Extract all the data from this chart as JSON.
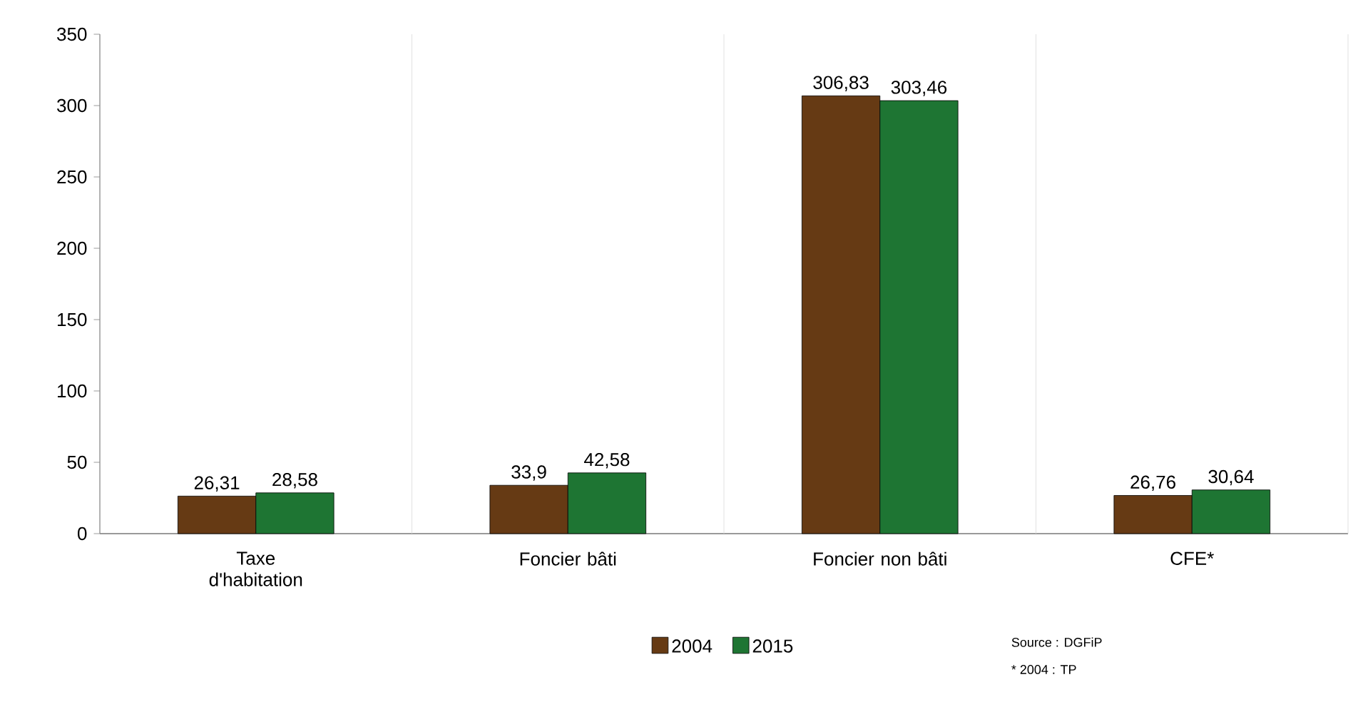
{
  "chart_data": {
    "type": "bar",
    "categories": [
      "Taxe d'habitation",
      "Foncier bâti",
      "Foncier non bâti",
      "CFE*"
    ],
    "series": [
      {
        "name": "2004",
        "color": "#663a14",
        "values": [
          26.31,
          33.9,
          306.83,
          26.76
        ],
        "value_labels": [
          "26,31",
          "33,9",
          "306,83",
          "26,76"
        ]
      },
      {
        "name": "2015",
        "color": "#1e7533",
        "values": [
          28.58,
          42.58,
          303.46,
          30.64
        ],
        "value_labels": [
          "28,58",
          "42,58",
          "303,46",
          "30,64"
        ]
      }
    ],
    "ylim": [
      0,
      350
    ],
    "yticks": [
      0,
      50,
      100,
      150,
      200,
      250,
      300,
      350
    ],
    "grid": "x",
    "legend": "bottom",
    "annotations": [
      "Source : DGFiP",
      "* 2004 : TP"
    ]
  }
}
